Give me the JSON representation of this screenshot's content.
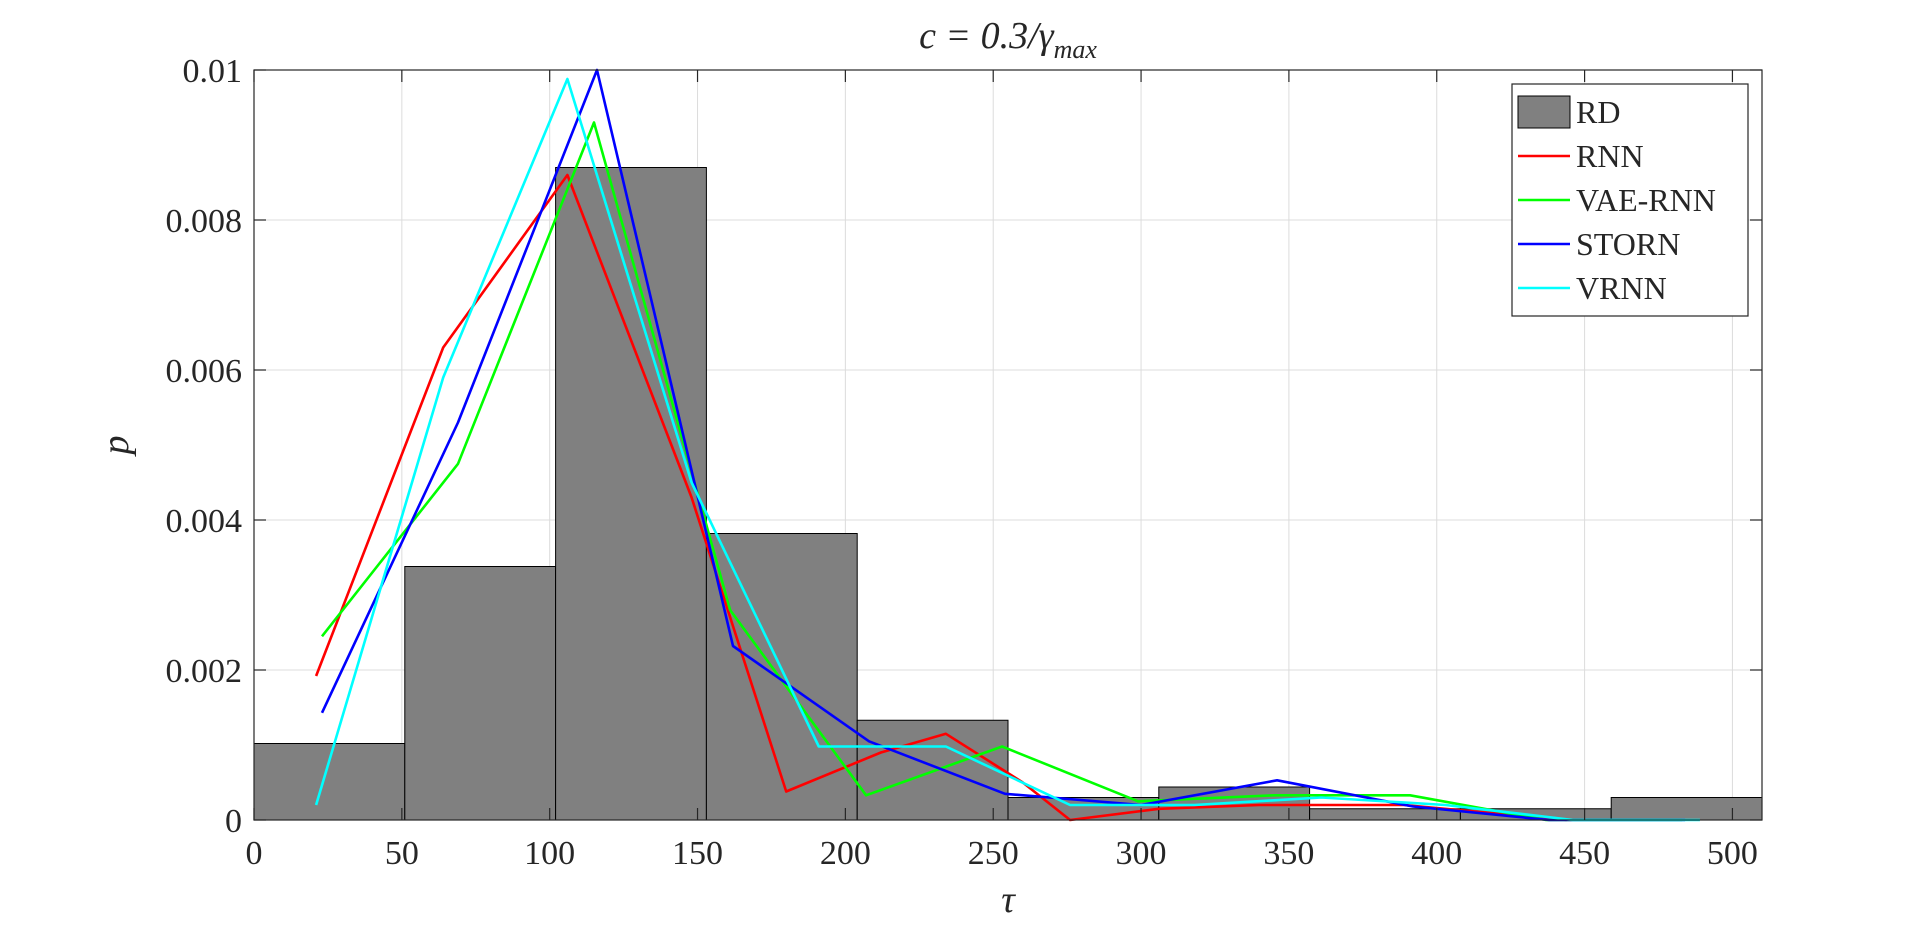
{
  "chart_data": {
    "type": "bar",
    "title": "c = 0.3/γ",
    "title_subscript": "max",
    "xlabel": "τ",
    "ylabel": "p",
    "xlim": [
      0,
      510
    ],
    "ylim": [
      0,
      0.01
    ],
    "xticks": [
      0,
      50,
      100,
      150,
      200,
      250,
      300,
      350,
      400,
      450,
      500
    ],
    "yticks": [
      0,
      0.002,
      0.004,
      0.006,
      0.008,
      0.01
    ],
    "ytick_labels": [
      "0",
      "0.002",
      "0.004",
      "0.006",
      "0.008",
      "0.01"
    ],
    "grid": true,
    "legend_position": "top-right",
    "histogram": {
      "name": "RD",
      "color": "#808080",
      "bin_edges": [
        0,
        51,
        102,
        153,
        204,
        255,
        306,
        357,
        408,
        459,
        510
      ],
      "values": [
        0.00102,
        0.00338,
        0.0087,
        0.00382,
        0.00133,
        0.0003,
        0.00044,
        0.00015,
        0.00015,
        0.0003
      ]
    },
    "series": [
      {
        "name": "RNN",
        "color": "#ff0000",
        "x": [
          21,
          64,
          106,
          148,
          180,
          212,
          234,
          260,
          276,
          306,
          340,
          389,
          444
        ],
        "y": [
          0.00192,
          0.0063,
          0.0086,
          0.0043,
          0.00038,
          0.0009,
          0.00115,
          0.0005,
          0.0,
          0.00015,
          0.0002,
          0.0002,
          0.0
        ]
      },
      {
        "name": "VAE-RNN",
        "color": "#00ff00",
        "x": [
          23,
          69,
          115,
          161,
          207,
          253,
          299,
          345,
          391,
          437,
          483
        ],
        "y": [
          0.00245,
          0.00475,
          0.0093,
          0.0028,
          0.00033,
          0.00098,
          0.00025,
          0.00033,
          0.00033,
          0.0,
          0.0
        ]
      },
      {
        "name": "STORN",
        "color": "#0000ff",
        "x": [
          23,
          69,
          116,
          162,
          208,
          254,
          300,
          346,
          392,
          438,
          484
        ],
        "y": [
          0.00143,
          0.0053,
          0.01,
          0.00232,
          0.00105,
          0.00035,
          0.0002,
          0.00053,
          0.00018,
          0.0,
          0.0
        ]
      },
      {
        "name": "VRNN",
        "color": "#00ffff",
        "x": [
          21,
          64,
          106,
          148,
          191,
          234,
          276,
          318,
          361,
          403,
          446,
          489
        ],
        "y": [
          0.0002,
          0.0059,
          0.00988,
          0.0045,
          0.00098,
          0.00098,
          0.0002,
          0.0002,
          0.0003,
          0.0002,
          0.0,
          0.0
        ]
      }
    ]
  }
}
